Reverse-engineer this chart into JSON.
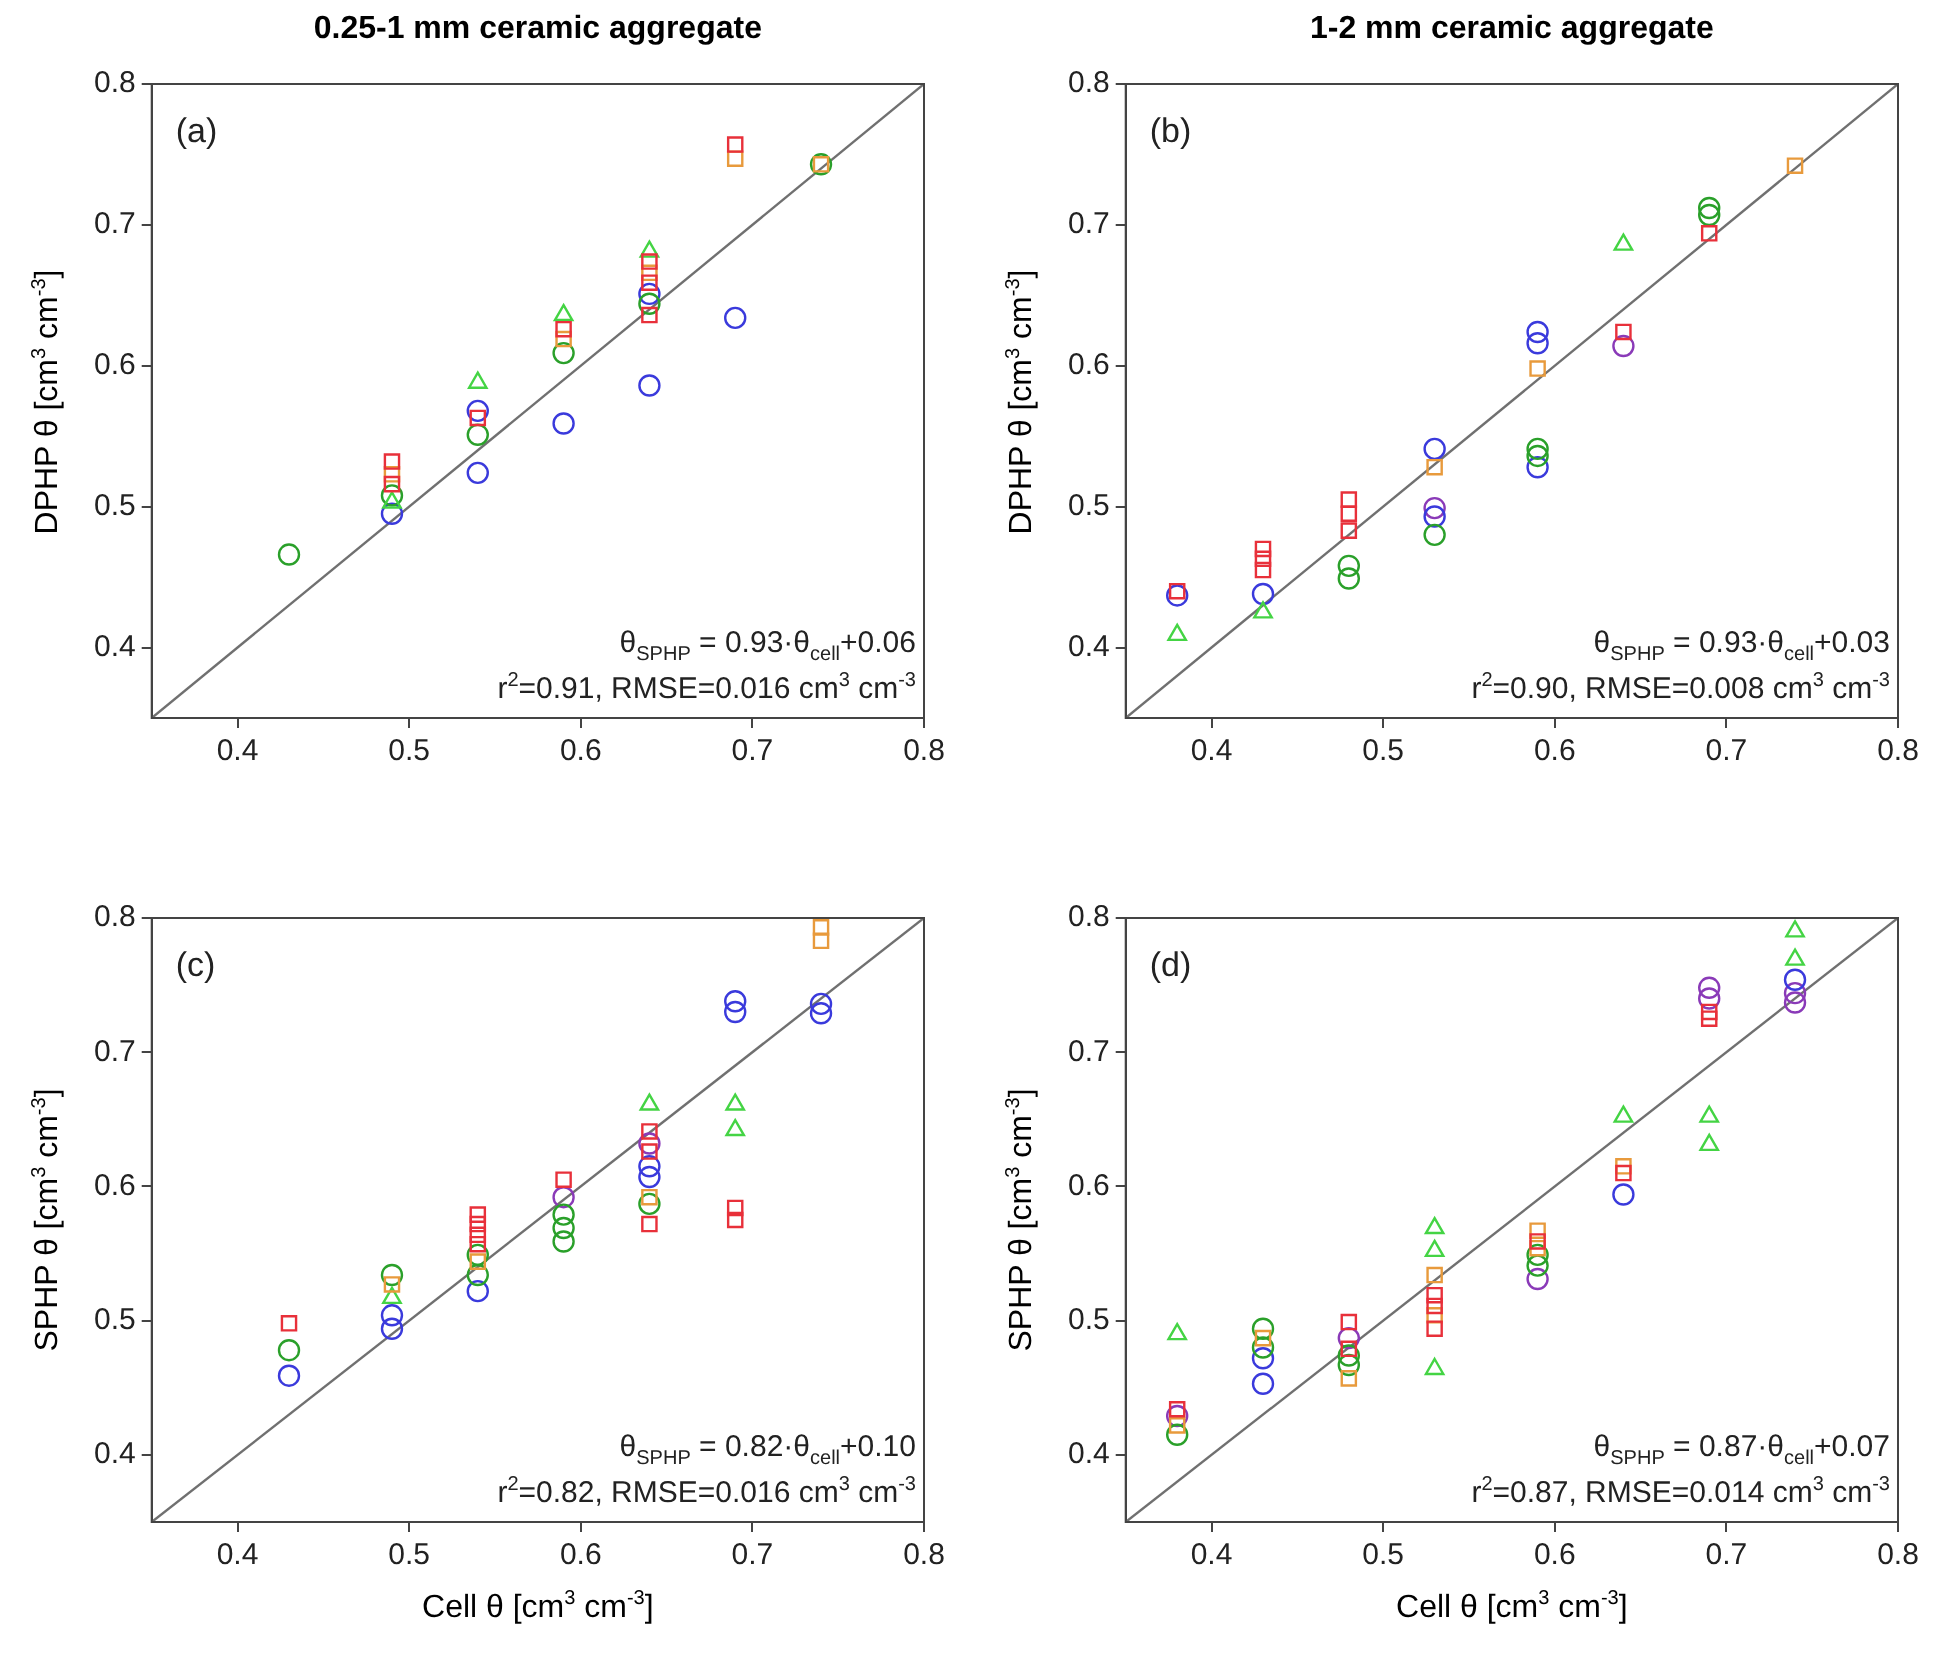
{
  "chart_data": [
    {
      "type": "scatter",
      "title": "0.25-1 mm ceramic aggregate",
      "ylabel": "DPHP θ [cm$^{3}$ cm$^{-3}$]",
      "xlim": [
        0.35,
        0.8
      ],
      "ylim": [
        0.35,
        0.8
      ],
      "xticks": [
        0.4,
        0.5,
        0.6,
        0.7,
        0.8
      ],
      "yticks": [
        0.4,
        0.5,
        0.6,
        0.7,
        0.8
      ],
      "grid": false,
      "legend": false,
      "annotations": [
        "(a)",
        "θ$_{SPHP}$ = 0.93·θ$_{cell}$+0.06",
        "r$^{2}$=0.91, RMSE=0.016 cm$^{3}$ cm$^{-3}$"
      ],
      "series": [
        {
          "type": "line",
          "color": "#707070",
          "marker": "none",
          "x": [
            0.35,
            0.8
          ],
          "values": [
            0.35,
            0.8
          ]
        },
        {
          "color": "#e8303a",
          "marker": "square",
          "x": [
            0.49,
            0.49,
            0.54,
            0.59,
            0.64,
            0.64,
            0.64,
            0.69
          ],
          "values": [
            0.532,
            0.516,
            0.563,
            0.626,
            0.674,
            0.659,
            0.636,
            0.757
          ]
        },
        {
          "color": "#e89a3c",
          "marker": "square",
          "x": [
            0.49,
            0.59,
            0.64,
            0.69,
            0.74
          ],
          "values": [
            0.523,
            0.619,
            0.666,
            0.747,
            0.743
          ]
        },
        {
          "color": "#44d444",
          "marker": "triangle",
          "x": [
            0.49,
            0.54,
            0.59,
            0.64
          ],
          "values": [
            0.503,
            0.588,
            0.636,
            0.681
          ]
        },
        {
          "color": "#2aa02a",
          "marker": "circle",
          "x": [
            0.43,
            0.49,
            0.54,
            0.59,
            0.64,
            0.74
          ],
          "values": [
            0.466,
            0.508,
            0.551,
            0.609,
            0.644,
            0.743
          ]
        },
        {
          "color": "#3a3adc",
          "marker": "circle",
          "x": [
            0.49,
            0.54,
            0.54,
            0.59,
            0.64,
            0.64,
            0.69
          ],
          "values": [
            0.495,
            0.568,
            0.524,
            0.559,
            0.651,
            0.586,
            0.634
          ]
        }
      ]
    },
    {
      "type": "scatter",
      "title": "1-2 mm ceramic aggregate",
      "ylabel": "DPHP θ [cm$^{3}$ cm$^{-3}$]",
      "xlim": [
        0.35,
        0.8
      ],
      "ylim": [
        0.35,
        0.8
      ],
      "xticks": [
        0.4,
        0.5,
        0.6,
        0.7,
        0.8
      ],
      "yticks": [
        0.4,
        0.5,
        0.6,
        0.7,
        0.8
      ],
      "grid": false,
      "legend": false,
      "annotations": [
        "(b)",
        "θ$_{SPHP}$ = 0.93·θ$_{cell}$+0.03",
        "r$^{2}$=0.90, RMSE=0.008 cm$^{3}$ cm$^{-3}$"
      ],
      "series": [
        {
          "type": "line",
          "color": "#707070",
          "marker": "none",
          "x": [
            0.35,
            0.8
          ],
          "values": [
            0.35,
            0.8
          ]
        },
        {
          "color": "#e8303a",
          "marker": "square",
          "x": [
            0.38,
            0.43,
            0.43,
            0.43,
            0.48,
            0.48,
            0.48,
            0.64,
            0.69
          ],
          "values": [
            0.44,
            0.47,
            0.463,
            0.455,
            0.505,
            0.495,
            0.483,
            0.624,
            0.694
          ]
        },
        {
          "color": "#e89a3c",
          "marker": "square",
          "x": [
            0.53,
            0.59,
            0.74
          ],
          "values": [
            0.528,
            0.598,
            0.742
          ]
        },
        {
          "color": "#44d444",
          "marker": "triangle",
          "x": [
            0.38,
            0.43,
            0.64
          ],
          "values": [
            0.409,
            0.425,
            0.686
          ]
        },
        {
          "color": "#2aa02a",
          "marker": "circle",
          "x": [
            0.48,
            0.48,
            0.53,
            0.59,
            0.59,
            0.69,
            0.69
          ],
          "values": [
            0.458,
            0.449,
            0.48,
            0.541,
            0.536,
            0.712,
            0.707
          ]
        },
        {
          "color": "#3a3adc",
          "marker": "circle",
          "x": [
            0.38,
            0.43,
            0.53,
            0.53,
            0.59,
            0.59,
            0.59
          ],
          "values": [
            0.437,
            0.438,
            0.541,
            0.493,
            0.624,
            0.616,
            0.528
          ]
        },
        {
          "color": "#8a3ab8",
          "marker": "circle",
          "x": [
            0.53,
            0.64
          ],
          "values": [
            0.499,
            0.614
          ]
        }
      ]
    },
    {
      "type": "scatter",
      "xlabel": "Cell θ [cm$^{3}$ cm$^{-3}$]",
      "ylabel": "SPHP θ [cm$^{3}$ cm$^{-3}$]",
      "xlim": [
        0.35,
        0.8
      ],
      "ylim": [
        0.35,
        0.8
      ],
      "xticks": [
        0.4,
        0.5,
        0.6,
        0.7,
        0.8
      ],
      "yticks": [
        0.4,
        0.5,
        0.6,
        0.7,
        0.8
      ],
      "grid": false,
      "legend": false,
      "annotations": [
        "(c)",
        "θ$_{SPHP}$ = 0.82·θ$_{cell}$+0.10",
        "r$^{2}$=0.82, RMSE=0.016 cm$^{3}$ cm$^{-3}$"
      ],
      "series": [
        {
          "type": "line",
          "color": "#707070",
          "marker": "none",
          "x": [
            0.35,
            0.8
          ],
          "values": [
            0.35,
            0.8
          ]
        },
        {
          "color": "#e8303a",
          "marker": "square",
          "x": [
            0.43,
            0.54,
            0.54,
            0.54,
            0.54,
            0.59,
            0.64,
            0.64,
            0.64,
            0.69,
            0.69
          ],
          "values": [
            0.498,
            0.579,
            0.572,
            0.564,
            0.557,
            0.605,
            0.641,
            0.626,
            0.572,
            0.584,
            0.575
          ]
        },
        {
          "color": "#e89a3c",
          "marker": "square",
          "x": [
            0.49,
            0.54,
            0.64,
            0.74,
            0.74
          ],
          "values": [
            0.527,
            0.544,
            0.592,
            0.793,
            0.783
          ]
        },
        {
          "color": "#44d444",
          "marker": "triangle",
          "x": [
            0.49,
            0.64,
            0.69,
            0.69
          ],
          "values": [
            0.517,
            0.661,
            0.661,
            0.642
          ]
        },
        {
          "color": "#2aa02a",
          "marker": "circle",
          "x": [
            0.43,
            0.49,
            0.54,
            0.54,
            0.59,
            0.59,
            0.59,
            0.64
          ],
          "values": [
            0.478,
            0.534,
            0.549,
            0.534,
            0.579,
            0.569,
            0.559,
            0.587
          ]
        },
        {
          "color": "#3a3adc",
          "marker": "circle",
          "x": [
            0.43,
            0.49,
            0.49,
            0.54,
            0.64,
            0.64,
            0.69,
            0.69,
            0.74,
            0.74
          ],
          "values": [
            0.459,
            0.504,
            0.494,
            0.522,
            0.615,
            0.607,
            0.738,
            0.73,
            0.736,
            0.729
          ]
        },
        {
          "color": "#8a3ab8",
          "marker": "circle",
          "x": [
            0.59,
            0.64
          ],
          "values": [
            0.592,
            0.632
          ]
        }
      ]
    },
    {
      "type": "scatter",
      "xlabel": "Cell θ [cm$^{3}$ cm$^{-3}$]",
      "ylabel": "SPHP θ [cm$^{3}$ cm$^{-3}$]",
      "xlim": [
        0.35,
        0.8
      ],
      "ylim": [
        0.35,
        0.8
      ],
      "xticks": [
        0.4,
        0.5,
        0.6,
        0.7,
        0.8
      ],
      "yticks": [
        0.4,
        0.5,
        0.6,
        0.7,
        0.8
      ],
      "grid": false,
      "legend": false,
      "annotations": [
        "(d)",
        "θ$_{SPHP}$ = 0.87·θ$_{cell}$+0.07",
        "r$^{2}$=0.87, RMSE=0.014 cm$^{3}$ cm$^{-3}$"
      ],
      "series": [
        {
          "type": "line",
          "color": "#707070",
          "marker": "none",
          "x": [
            0.35,
            0.8
          ],
          "values": [
            0.35,
            0.8
          ]
        },
        {
          "color": "#e8303a",
          "marker": "square",
          "x": [
            0.38,
            0.48,
            0.48,
            0.53,
            0.53,
            0.53,
            0.59,
            0.64,
            0.69,
            0.69
          ],
          "values": [
            0.434,
            0.499,
            0.479,
            0.519,
            0.511,
            0.494,
            0.559,
            0.61,
            0.73,
            0.725
          ]
        },
        {
          "color": "#e89a3c",
          "marker": "square",
          "x": [
            0.38,
            0.43,
            0.48,
            0.53,
            0.53,
            0.59,
            0.59,
            0.64
          ],
          "values": [
            0.422,
            0.487,
            0.457,
            0.534,
            0.504,
            0.567,
            0.554,
            0.615
          ]
        },
        {
          "color": "#44d444",
          "marker": "triangle",
          "x": [
            0.38,
            0.53,
            0.53,
            0.53,
            0.64,
            0.69,
            0.69,
            0.74,
            0.74
          ],
          "values": [
            0.49,
            0.569,
            0.552,
            0.464,
            0.652,
            0.652,
            0.631,
            0.79,
            0.769
          ]
        },
        {
          "color": "#2aa02a",
          "marker": "circle",
          "x": [
            0.38,
            0.43,
            0.43,
            0.48,
            0.48,
            0.59,
            0.59
          ],
          "values": [
            0.415,
            0.494,
            0.48,
            0.474,
            0.467,
            0.549,
            0.541
          ]
        },
        {
          "color": "#3a3adc",
          "marker": "circle",
          "x": [
            0.43,
            0.43,
            0.64,
            0.74
          ],
          "values": [
            0.472,
            0.453,
            0.594,
            0.754
          ]
        },
        {
          "color": "#8a3ab8",
          "marker": "circle",
          "x": [
            0.38,
            0.48,
            0.59,
            0.69,
            0.69,
            0.74,
            0.74
          ],
          "values": [
            0.429,
            0.487,
            0.531,
            0.748,
            0.74,
            0.744,
            0.737
          ]
        }
      ]
    }
  ]
}
